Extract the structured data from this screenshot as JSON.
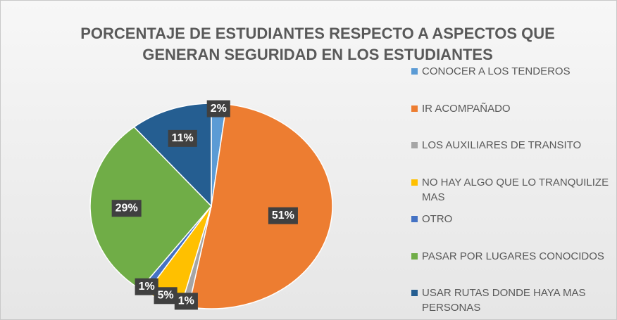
{
  "chart_data": {
    "type": "pie",
    "title": "PORCENTAJE DE ESTUDIANTES RESPECTO A ASPECTOS QUE GENERAN SEGURIDAD EN LOS ESTUDIANTES",
    "categories": [
      "CONOCER A LOS TENDEROS",
      "IR ACOMPAÑADO",
      "LOS AUXILIARES DE TRANSITO",
      "NO HAY ALGO QUE LO TRANQUILIZE MAS",
      "OTRO",
      "PASAR POR LUGARES CONOCIDOS",
      "USAR RUTAS DONDE HAYA MAS PERSONAS"
    ],
    "values": [
      2,
      51,
      1,
      5,
      1,
      29,
      11
    ],
    "value_labels": [
      "2%",
      "51%",
      "1%",
      "5%",
      "1%",
      "29%",
      "11%"
    ],
    "colors": [
      "#5b9bd5",
      "#ed7d31",
      "#a5a5a5",
      "#ffc000",
      "#4472c4",
      "#70ad47",
      "#255e91"
    ],
    "legend": "right"
  }
}
